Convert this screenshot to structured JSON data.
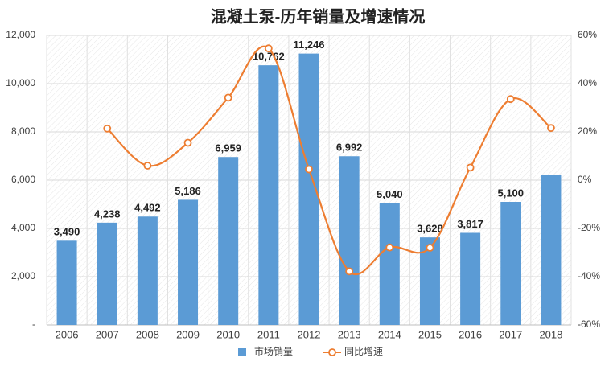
{
  "chart_data": {
    "type": "bar",
    "title": "混凝土泵-历年销量及增速情况",
    "categories": [
      "2006",
      "2007",
      "2008",
      "2009",
      "2010",
      "2011",
      "2012",
      "2013",
      "2014",
      "2015",
      "2016",
      "2017",
      "2018"
    ],
    "series": [
      {
        "name": "市场销量",
        "type": "bar",
        "color": "#5b9bd5",
        "values": [
          3490,
          4238,
          4492,
          5186,
          6959,
          10762,
          11246,
          6992,
          5040,
          3628,
          3817,
          5100,
          6200
        ],
        "value_labels": [
          "3,490",
          "4,238",
          "4,492",
          "5,186",
          "6,959",
          "10,762",
          "11,246",
          "6,992",
          "5,040",
          "3,628",
          "3,817",
          "5,100",
          null
        ]
      },
      {
        "name": "同比增速",
        "type": "line",
        "axis": "y2",
        "color": "#ed7d31",
        "values": [
          null,
          21.4,
          6,
          15.5,
          34.2,
          54.6,
          4.5,
          -37.8,
          -27.9,
          -28,
          5.2,
          33.6,
          21.6
        ]
      }
    ],
    "ylim": [
      0,
      12000
    ],
    "yticks": [
      {
        "value": 0,
        "label": "-"
      },
      {
        "value": 2000,
        "label": "2,000"
      },
      {
        "value": 4000,
        "label": "4,000"
      },
      {
        "value": 6000,
        "label": "6,000"
      },
      {
        "value": 8000,
        "label": "8,000"
      },
      {
        "value": 10000,
        "label": "10,000"
      },
      {
        "value": 12000,
        "label": "12,000"
      }
    ],
    "y2lim": [
      -60,
      60
    ],
    "y2ticks": [
      {
        "value": -60,
        "label": "-60%"
      },
      {
        "value": -40,
        "label": "-40%"
      },
      {
        "value": -20,
        "label": "-20%"
      },
      {
        "value": 0,
        "label": "0%"
      },
      {
        "value": 20,
        "label": "20%"
      },
      {
        "value": 40,
        "label": "40%"
      },
      {
        "value": 60,
        "label": "60%"
      }
    ],
    "grid": true,
    "legend": "bottom"
  }
}
